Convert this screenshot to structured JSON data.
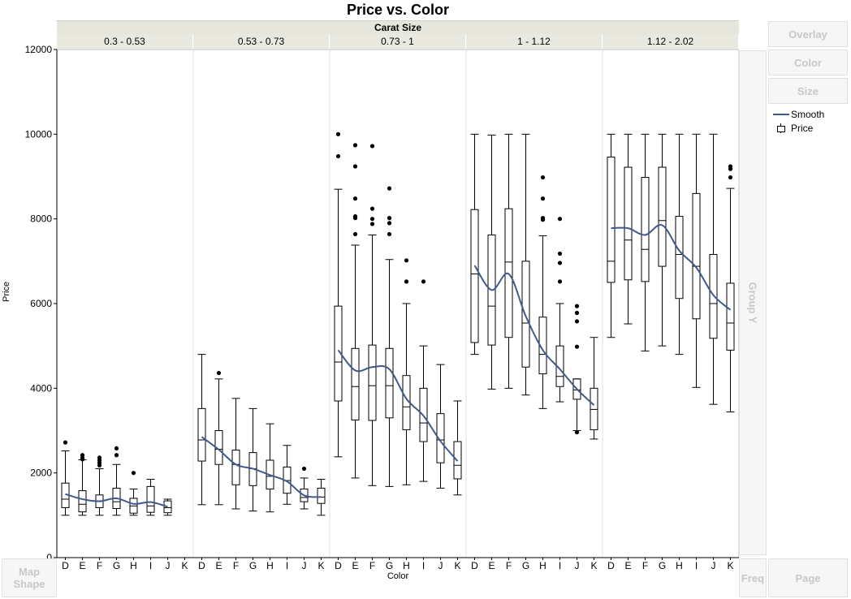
{
  "title": "Price vs. Color",
  "group_x_label": "Carat Size",
  "drop_zones": {
    "overlay": "Overlay",
    "color": "Color",
    "size": "Size",
    "group_y": "Group Y",
    "map_shape": "Map\nShape",
    "freq": "Freq",
    "page": "Page"
  },
  "legend": {
    "items": [
      {
        "label": "Smooth",
        "kind": "line",
        "color": "#41598b"
      },
      {
        "label": "Price",
        "kind": "box"
      }
    ]
  },
  "colors": {
    "smooth": "#41598b",
    "box": "#000000",
    "grid": "#e0e0e0"
  },
  "chart_data": {
    "type": "box",
    "title": "Price vs. Color",
    "xlabel": "Color",
    "ylabel": "Price",
    "ylim": [
      0,
      12000
    ],
    "yticks": [
      0,
      2000,
      4000,
      6000,
      8000,
      10000,
      12000
    ],
    "colors": [
      "D",
      "E",
      "F",
      "G",
      "H",
      "I",
      "J",
      "K"
    ],
    "panels": [
      {
        "label": "0.3 - 0.53",
        "boxes": [
          {
            "x": "D",
            "whisker": [
              1000,
              2520
            ],
            "q1": 1180,
            "median": 1380,
            "q3": 1760,
            "outliers": [
              2720
            ]
          },
          {
            "x": "E",
            "whisker": [
              1000,
              2310
            ],
            "q1": 1080,
            "median": 1260,
            "q3": 1580,
            "outliers": [
              2320,
              2360,
              2420
            ]
          },
          {
            "x": "F",
            "whisker": [
              1000,
              2100
            ],
            "q1": 1180,
            "median": 1340,
            "q3": 1480,
            "outliers": [
              2180,
              2240,
              2300,
              2360
            ]
          },
          {
            "x": "G",
            "whisker": [
              1000,
              2200
            ],
            "q1": 1160,
            "median": 1320,
            "q3": 1640,
            "outliers": [
              2420,
              2580
            ]
          },
          {
            "x": "H",
            "whisker": [
              1000,
              1620
            ],
            "q1": 1050,
            "median": 1220,
            "q3": 1400,
            "outliers": [
              2000
            ]
          },
          {
            "x": "I",
            "whisker": [
              1000,
              1850
            ],
            "q1": 1070,
            "median": 1220,
            "q3": 1680,
            "outliers": []
          },
          {
            "x": "J",
            "whisker": [
              1000,
              1380
            ],
            "q1": 1060,
            "median": 1180,
            "q3": 1340,
            "outliers": []
          },
          {
            "x": "K",
            "whisker": null,
            "q1": null,
            "median": null,
            "q3": null,
            "outliers": []
          }
        ],
        "smooth": [
          {
            "x": "D",
            "y": 1500
          },
          {
            "x": "E",
            "y": 1380
          },
          {
            "x": "F",
            "y": 1330
          },
          {
            "x": "G",
            "y": 1400
          },
          {
            "x": "H",
            "y": 1270
          },
          {
            "x": "I",
            "y": 1310
          },
          {
            "x": "J",
            "y": 1200
          }
        ]
      },
      {
        "label": "0.53 - 0.73",
        "boxes": [
          {
            "x": "D",
            "whisker": [
              1250,
              4800
            ],
            "q1": 2280,
            "median": 2780,
            "q3": 3520,
            "outliers": []
          },
          {
            "x": "E",
            "whisker": [
              1250,
              4220
            ],
            "q1": 2200,
            "median": 2560,
            "q3": 3000,
            "outliers": [
              4360
            ]
          },
          {
            "x": "F",
            "whisker": [
              1150,
              3760
            ],
            "q1": 1720,
            "median": 2200,
            "q3": 2540,
            "outliers": []
          },
          {
            "x": "G",
            "whisker": [
              1100,
              3520
            ],
            "q1": 1700,
            "median": 2100,
            "q3": 2480,
            "outliers": []
          },
          {
            "x": "H",
            "whisker": [
              1080,
              3160
            ],
            "q1": 1620,
            "median": 1920,
            "q3": 2300,
            "outliers": []
          },
          {
            "x": "I",
            "whisker": [
              1260,
              2650
            ],
            "q1": 1520,
            "median": 1820,
            "q3": 2140,
            "outliers": []
          },
          {
            "x": "J",
            "whisker": [
              1150,
              1880
            ],
            "q1": 1320,
            "median": 1420,
            "q3": 1620,
            "outliers": [
              2100
            ]
          },
          {
            "x": "K",
            "whisker": [
              1000,
              1850
            ],
            "q1": 1280,
            "median": 1430,
            "q3": 1640,
            "outliers": []
          }
        ],
        "smooth": [
          {
            "x": "D",
            "y": 2850
          },
          {
            "x": "E",
            "y": 2550
          },
          {
            "x": "F",
            "y": 2200
          },
          {
            "x": "G",
            "y": 2100
          },
          {
            "x": "H",
            "y": 1950
          },
          {
            "x": "I",
            "y": 1800
          },
          {
            "x": "J",
            "y": 1470
          },
          {
            "x": "K",
            "y": 1430
          }
        ]
      },
      {
        "label": "0.73 - 1",
        "boxes": [
          {
            "x": "D",
            "whisker": [
              2380,
              8700
            ],
            "q1": 3700,
            "median": 4620,
            "q3": 5940,
            "outliers": [
              9480,
              10000
            ]
          },
          {
            "x": "E",
            "whisker": [
              1880,
              7380
            ],
            "q1": 3250,
            "median": 4040,
            "q3": 4940,
            "outliers": [
              7640,
              8020,
              8060,
              8480,
              9240,
              9740
            ]
          },
          {
            "x": "F",
            "whisker": [
              1700,
              7620
            ],
            "q1": 3240,
            "median": 4060,
            "q3": 5020,
            "outliers": [
              7880,
              8000,
              8240,
              9720
            ]
          },
          {
            "x": "G",
            "whisker": [
              1680,
              7040
            ],
            "q1": 3300,
            "median": 4060,
            "q3": 4940,
            "outliers": [
              7640,
              7900,
              8020,
              8720
            ]
          },
          {
            "x": "H",
            "whisker": [
              1720,
              6000
            ],
            "q1": 3020,
            "median": 3560,
            "q3": 4300,
            "outliers": [
              6520,
              7020
            ]
          },
          {
            "x": "I",
            "whisker": [
              1800,
              5000
            ],
            "q1": 2740,
            "median": 3180,
            "q3": 4000,
            "outliers": [
              6520
            ]
          },
          {
            "x": "J",
            "whisker": [
              1640,
              4560
            ],
            "q1": 2240,
            "median": 2780,
            "q3": 3400,
            "outliers": []
          },
          {
            "x": "K",
            "whisker": [
              1480,
              3700
            ],
            "q1": 1860,
            "median": 2180,
            "q3": 2740,
            "outliers": []
          }
        ],
        "smooth": [
          {
            "x": "D",
            "y": 4900
          },
          {
            "x": "E",
            "y": 4420
          },
          {
            "x": "F",
            "y": 4500
          },
          {
            "x": "G",
            "y": 4450
          },
          {
            "x": "H",
            "y": 3750
          },
          {
            "x": "I",
            "y": 3350
          },
          {
            "x": "J",
            "y": 2750
          },
          {
            "x": "K",
            "y": 2280
          }
        ]
      },
      {
        "label": "1 - 1.12",
        "boxes": [
          {
            "x": "D",
            "whisker": [
              4800,
              10000
            ],
            "q1": 5080,
            "median": 6700,
            "q3": 8220,
            "outliers": []
          },
          {
            "x": "E",
            "whisker": [
              3980,
              9980
            ],
            "q1": 5020,
            "median": 5940,
            "q3": 7620,
            "outliers": []
          },
          {
            "x": "F",
            "whisker": [
              4000,
              10000
            ],
            "q1": 5200,
            "median": 6980,
            "q3": 8240,
            "outliers": []
          },
          {
            "x": "G",
            "whisker": [
              3840,
              10000
            ],
            "q1": 4500,
            "median": 5540,
            "q3": 7000,
            "outliers": []
          },
          {
            "x": "H",
            "whisker": [
              3520,
              7600
            ],
            "q1": 4340,
            "median": 4800,
            "q3": 5680,
            "outliers": [
              7980,
              8020,
              8480,
              8980
            ]
          },
          {
            "x": "I",
            "whisker": [
              3680,
              6000
            ],
            "q1": 4040,
            "median": 4280,
            "q3": 5000,
            "outliers": [
              6520,
              6960,
              7180,
              8000
            ]
          },
          {
            "x": "J",
            "whisker": [
              3000,
              4220
            ],
            "q1": 3740,
            "median": 3960,
            "q3": 4220,
            "outliers": [
              2960,
              4980,
              5580,
              5780,
              5940
            ]
          },
          {
            "x": "K",
            "whisker": [
              2800,
              5200
            ],
            "q1": 3020,
            "median": 3500,
            "q3": 4000,
            "outliers": []
          }
        ],
        "smooth": [
          {
            "x": "D",
            "y": 6900
          },
          {
            "x": "E",
            "y": 6320
          },
          {
            "x": "F",
            "y": 6700
          },
          {
            "x": "G",
            "y": 5700
          },
          {
            "x": "H",
            "y": 4900
          },
          {
            "x": "I",
            "y": 4450
          },
          {
            "x": "J",
            "y": 3980
          },
          {
            "x": "K",
            "y": 3600
          }
        ]
      },
      {
        "label": "1.12 - 2.02",
        "boxes": [
          {
            "x": "D",
            "whisker": [
              5200,
              10000
            ],
            "q1": 6500,
            "median": 7000,
            "q3": 9460,
            "outliers": []
          },
          {
            "x": "E",
            "whisker": [
              5520,
              10000
            ],
            "q1": 6560,
            "median": 7500,
            "q3": 9220,
            "outliers": []
          },
          {
            "x": "F",
            "whisker": [
              4880,
              10000
            ],
            "q1": 6520,
            "median": 7280,
            "q3": 8980,
            "outliers": []
          },
          {
            "x": "G",
            "whisker": [
              5000,
              10000
            ],
            "q1": 6880,
            "median": 7960,
            "q3": 9220,
            "outliers": []
          },
          {
            "x": "H",
            "whisker": [
              4800,
              10000
            ],
            "q1": 6120,
            "median": 7160,
            "q3": 8060,
            "outliers": []
          },
          {
            "x": "I",
            "whisker": [
              4020,
              10000
            ],
            "q1": 5640,
            "median": 6880,
            "q3": 8600,
            "outliers": []
          },
          {
            "x": "J",
            "whisker": [
              3620,
              10000
            ],
            "q1": 5180,
            "median": 6000,
            "q3": 7160,
            "outliers": []
          },
          {
            "x": "K",
            "whisker": [
              3440,
              8720
            ],
            "q1": 4900,
            "median": 5540,
            "q3": 6480,
            "outliers": [
              8980,
              9180,
              9240
            ]
          }
        ],
        "smooth": [
          {
            "x": "D",
            "y": 7780
          },
          {
            "x": "E",
            "y": 7780
          },
          {
            "x": "F",
            "y": 7620
          },
          {
            "x": "G",
            "y": 7850
          },
          {
            "x": "H",
            "y": 7250
          },
          {
            "x": "I",
            "y": 6850
          },
          {
            "x": "J",
            "y": 6200
          },
          {
            "x": "K",
            "y": 5850
          }
        ]
      }
    ]
  }
}
